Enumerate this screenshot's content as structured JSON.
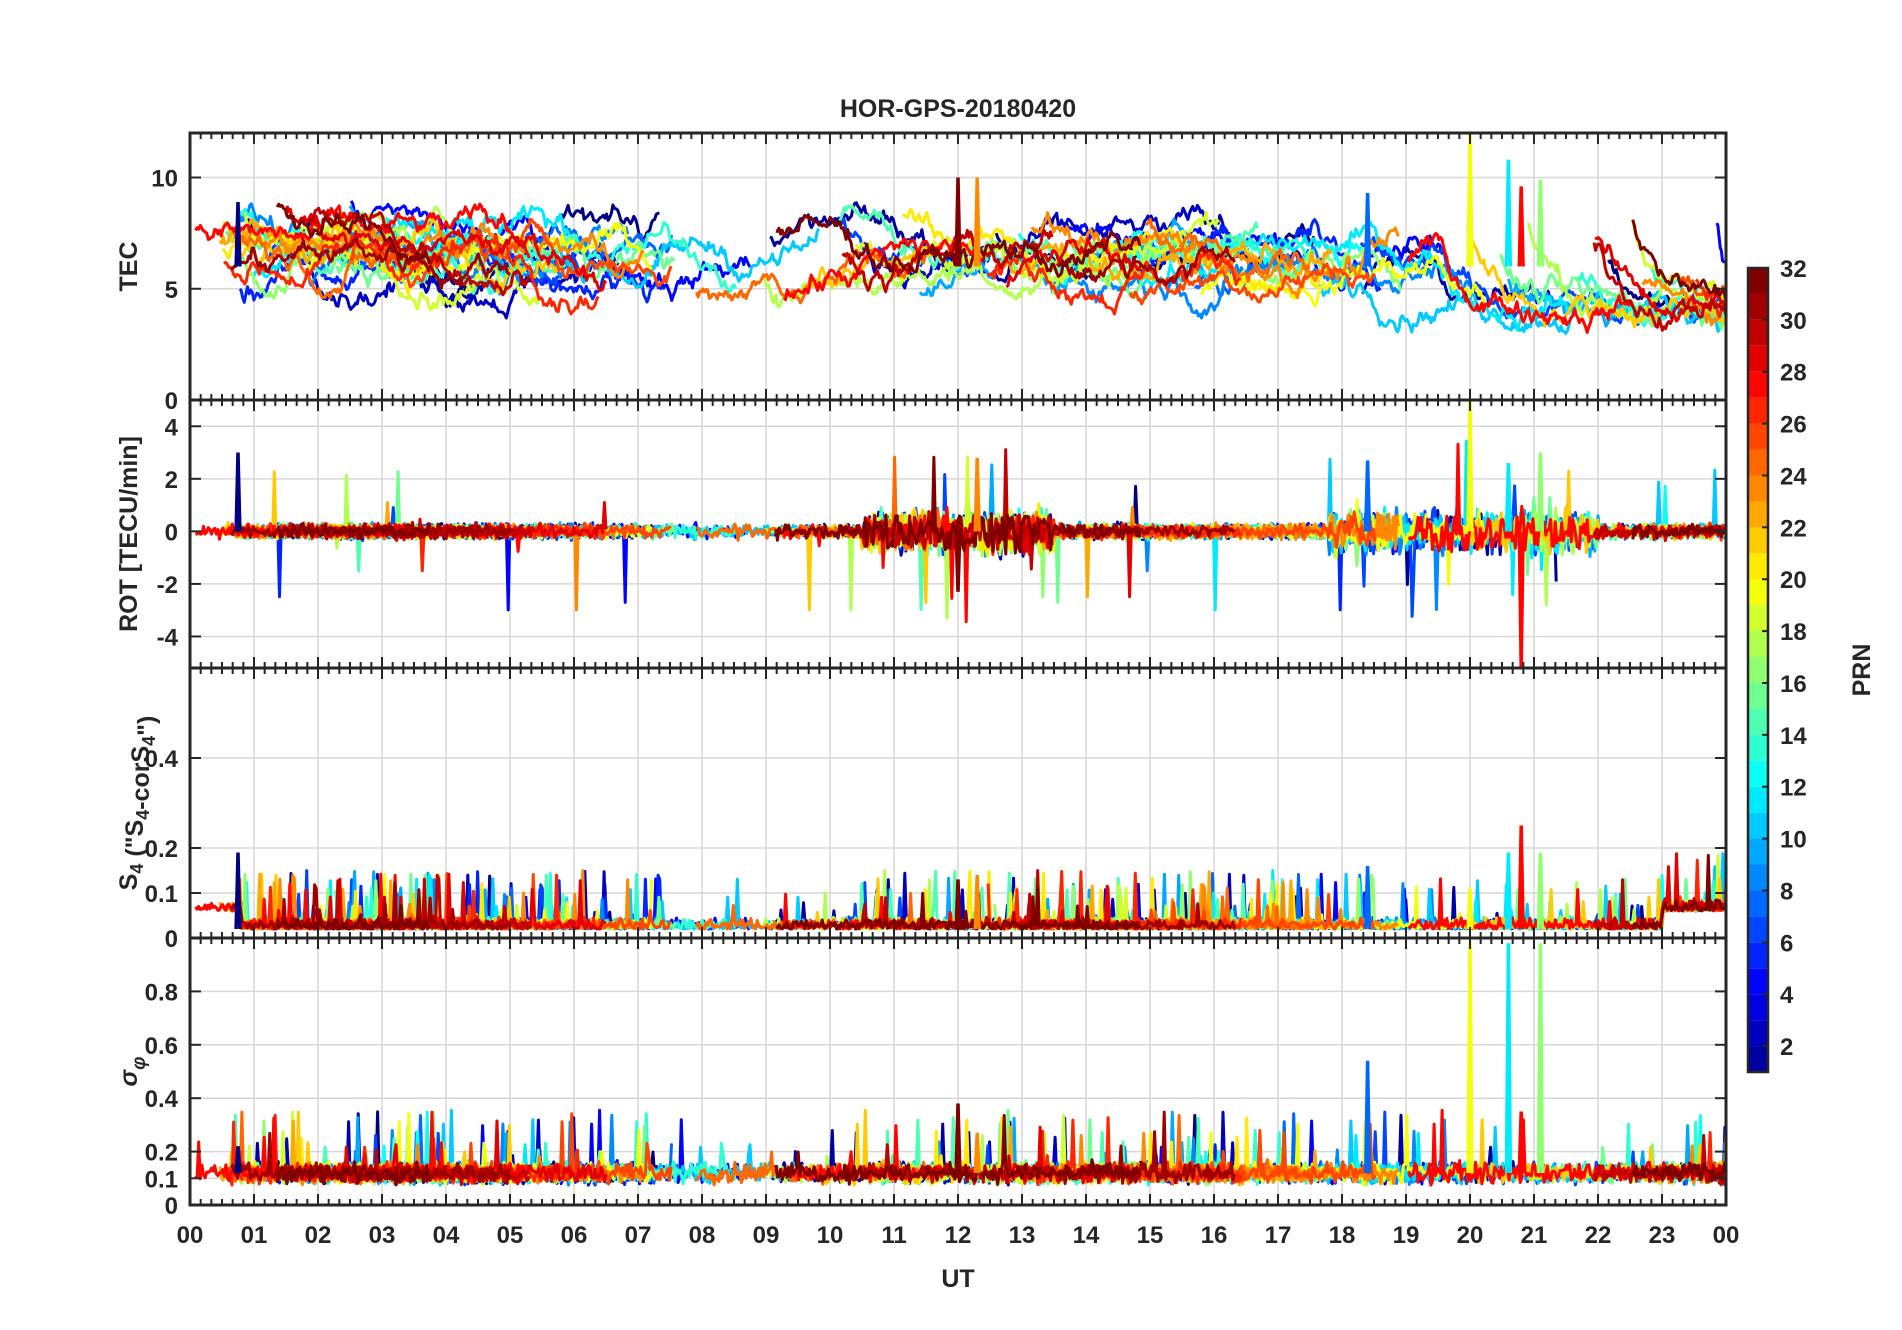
{
  "chart_data": {
    "type": "line",
    "title": "HOR-GPS-20180420",
    "xlabel": "UT",
    "x_tick_labels": [
      "00",
      "01",
      "02",
      "03",
      "04",
      "05",
      "06",
      "07",
      "08",
      "09",
      "10",
      "11",
      "12",
      "13",
      "14",
      "15",
      "16",
      "17",
      "18",
      "19",
      "20",
      "21",
      "22",
      "23",
      "00"
    ],
    "xlim": [
      0,
      24
    ],
    "grid": true,
    "colorbar": {
      "label": "PRN",
      "range": [
        1,
        32
      ],
      "tick_labels": [
        "2",
        "4",
        "6",
        "8",
        "10",
        "12",
        "14",
        "16",
        "18",
        "20",
        "22",
        "24",
        "26",
        "28",
        "30",
        "32"
      ],
      "tick_values": [
        2,
        4,
        6,
        8,
        10,
        12,
        14,
        16,
        18,
        20,
        22,
        24,
        26,
        28,
        30,
        32
      ],
      "colormap": "jet"
    },
    "panels": [
      {
        "id": "tec",
        "ylabel": "TEC",
        "ylim": [
          0,
          12
        ],
        "y_ticks": [
          0,
          5,
          10
        ],
        "y_tick_labels": [
          "0",
          "5",
          "10"
        ]
      },
      {
        "id": "rot",
        "ylabel": "ROT [TECU/min]",
        "ylim": [
          -5.2,
          5
        ],
        "y_ticks": [
          -4,
          -2,
          0,
          2,
          4
        ],
        "y_tick_labels": [
          "-4",
          "-2",
          "0",
          "2",
          "4"
        ]
      },
      {
        "id": "s4",
        "ylabel_main": "S",
        "ylabel_sub": "4",
        "ylabel_rest": " (\"S",
        "ylabel_sub2": "4",
        "ylabel_mid": "-corS",
        "ylabel_sub3": "4",
        "ylabel_end": "\")",
        "ylim": [
          0,
          0.6
        ],
        "y_ticks": [
          0,
          0.1,
          0.2,
          0.4
        ],
        "y_tick_labels": [
          "0",
          "0.1",
          "0.2",
          "0.4"
        ]
      },
      {
        "id": "sigma",
        "ylabel_main": "σ",
        "ylabel_sub": "φ",
        "ylim": [
          0,
          1
        ],
        "y_ticks": [
          0,
          0.1,
          0.2,
          0.4,
          0.6,
          0.8
        ],
        "y_tick_labels": [
          "0",
          "0.1",
          "0.2",
          "0.4",
          "0.6",
          "0.8"
        ]
      }
    ],
    "series_summary": [
      {
        "prn": 1,
        "panel_peaks": {
          "tec": 8.9,
          "rot": 3.0,
          "s4": 0.19,
          "sigma": 0.22
        }
      },
      {
        "prn": 8,
        "panel_peaks": {
          "tec": 9.3,
          "rot": 2.7,
          "s4": 0.16,
          "sigma": 0.54
        }
      },
      {
        "prn": 12,
        "panel_peaks": {
          "tec": 10.8,
          "rot": 2.6,
          "s4": 0.19,
          "sigma": 0.98
        }
      },
      {
        "prn": 17,
        "panel_peaks": {
          "tec": 9.9,
          "rot": 3.0,
          "s4": 0.19,
          "sigma": 0.98
        }
      },
      {
        "prn": 20,
        "panel_peaks": {
          "tec": 12.0,
          "rot": 5.0,
          "s4": 0.11,
          "sigma": 0.98
        }
      },
      {
        "prn": 24,
        "panel_peaks": {
          "tec": 10.0,
          "rot": 2.8,
          "s4": 0.14,
          "sigma": 0.27
        }
      },
      {
        "prn": 28,
        "panel_peaks": {
          "tec": 9.6,
          "rot": -5.2,
          "s4": 0.25,
          "sigma": 0.35
        }
      },
      {
        "prn": 32,
        "panel_peaks": {
          "tec": 10.0,
          "rot": -2.3,
          "s4": 0.13,
          "sigma": 0.38
        }
      }
    ]
  }
}
